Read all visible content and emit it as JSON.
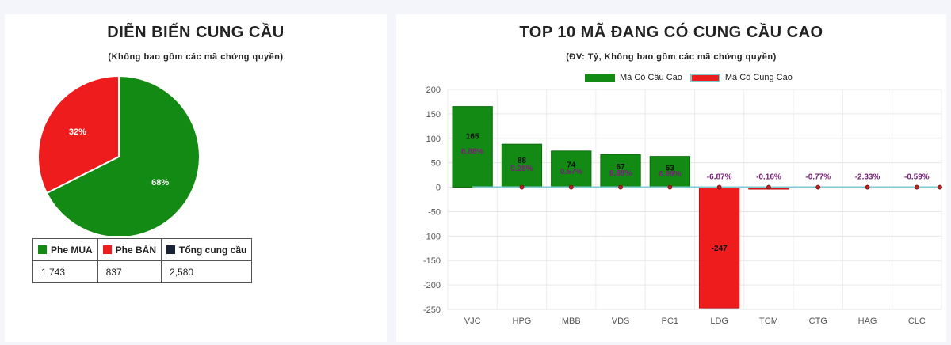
{
  "left": {
    "title": "DIỄN BIẾN CUNG CẦU",
    "subtitle": "(Không bao gồm các mã chứng quyền)",
    "table": {
      "headers": [
        "Phe MUA",
        "Phe BÁN",
        "Tổng cung cầu"
      ],
      "values": [
        "1,743",
        "837",
        "2,580"
      ]
    }
  },
  "right": {
    "title": "TOP 10 MÃ ĐANG CÓ CUNG CẦU CAO",
    "subtitle": "(ĐV: Tỷ, Không bao gồm các mã chứng quyền)",
    "legend": [
      "Mã Có Cầu Cao",
      "Mã Có Cung Cao"
    ]
  },
  "colors": {
    "buy": "#138a13",
    "sell": "#ee1c1c",
    "total": "#1a2238",
    "line": "#7ccbd0",
    "pct": "#7a1f7a"
  },
  "chart_data": [
    {
      "type": "pie",
      "slices": [
        {
          "name": "Phe MUA",
          "value": 1743,
          "label": "68%"
        },
        {
          "name": "Phe BÁN",
          "value": 837,
          "label": "32%"
        }
      ]
    },
    {
      "type": "bar",
      "categories": [
        "VJC",
        "HPG",
        "MBB",
        "VDS",
        "PC1",
        "LDG",
        "TCM",
        "CTG",
        "HAG",
        "CLC"
      ],
      "series": [
        {
          "name": "Mã Có Cầu Cao",
          "values": [
            165,
            88,
            74,
            67,
            63,
            0,
            0,
            0,
            0,
            0
          ]
        },
        {
          "name": "Mã Có Cung Cao",
          "values": [
            0,
            0,
            0,
            0,
            0,
            -247,
            -4,
            0,
            0,
            0
          ]
        }
      ],
      "value_labels": [
        "165",
        "88",
        "74",
        "67",
        "63",
        "-247",
        "",
        "",
        "",
        ""
      ],
      "pct_labels": [
        "6.88%",
        "0.28%",
        "0.57%",
        "6.88%",
        "6.99%",
        "-6.87%",
        "-0.16%",
        "-0.77%",
        "-2.33%",
        "-0.59%"
      ],
      "ylim": [
        -250,
        200
      ],
      "yticks": [
        200,
        150,
        100,
        50,
        0,
        -50,
        -100,
        -150,
        -200,
        -250
      ],
      "grid": true,
      "legend_position": "top"
    }
  ]
}
